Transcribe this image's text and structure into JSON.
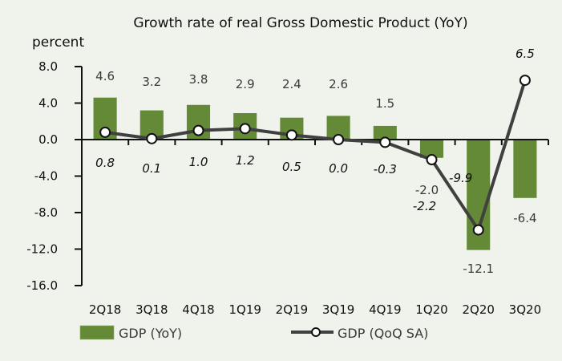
{
  "chart_data": {
    "type": "bar",
    "title": "Growth rate of real Gross Domestic Product (YoY)",
    "ylabel": "percent",
    "xlabel": "",
    "ylim": [
      -16.0,
      8.0
    ],
    "yticks": [
      8.0,
      4.0,
      0.0,
      -4.0,
      -8.0,
      -12.0,
      -16.0
    ],
    "ytick_labels": [
      "8.0",
      "4.0",
      "0.0",
      "-4.0",
      "-8.0",
      "-12.0",
      "-16.0"
    ],
    "grid": false,
    "legend_position": "bottom",
    "categories": [
      "2Q18",
      "3Q18",
      "4Q18",
      "1Q19",
      "2Q19",
      "3Q19",
      "4Q19",
      "1Q20",
      "2Q20",
      "3Q20"
    ],
    "series": [
      {
        "name": "GDP (YoY)",
        "type": "bar",
        "color": "#648a38",
        "values": [
          4.6,
          3.2,
          3.8,
          2.9,
          2.4,
          2.6,
          1.5,
          -2.0,
          -12.1,
          -6.4
        ],
        "labels": [
          "4.6",
          "3.2",
          "3.8",
          "2.9",
          "2.4",
          "2.6",
          "1.5",
          "-2.0",
          "-12.1",
          "-6.4"
        ]
      },
      {
        "name": "GDP (QoQ SA)",
        "type": "line",
        "color": "#404040",
        "values": [
          0.8,
          0.1,
          1.0,
          1.2,
          0.5,
          0.0,
          -0.3,
          -2.2,
          -9.9,
          6.5
        ],
        "labels": [
          "0.8",
          "0.1",
          "1.0",
          "1.2",
          "0.5",
          "0.0",
          "-0.3",
          "-2.2",
          "-9.9",
          "6.5"
        ]
      }
    ]
  }
}
